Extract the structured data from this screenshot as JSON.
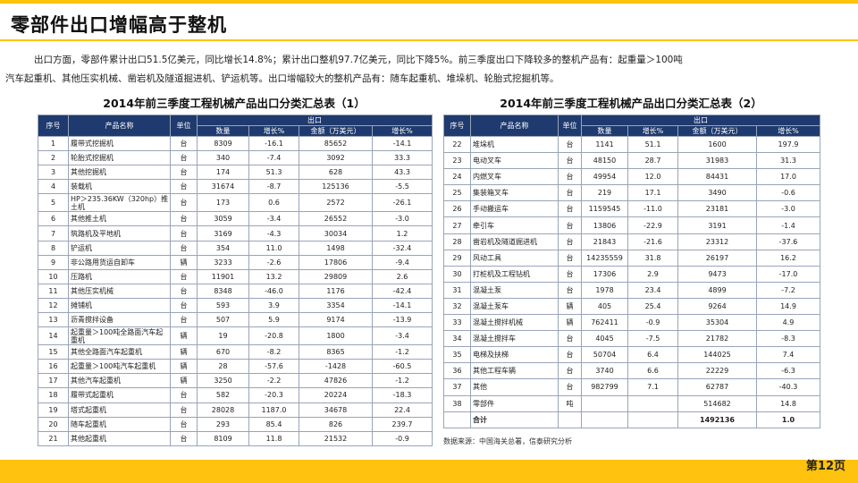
{
  "title": "零部件出口增幅高于整机",
  "paragraph": {
    "line1": "出口方面，零部件累计出口51.5亿美元，同比增长14.8%；累计出口整机97.7亿美元，同比下降5%。前三季度出口下降较多的整机产品有：起重量＞100吨",
    "line2": "汽车起重机、其他压实机械、凿岩机及隧道掘进机、铲运机等。出口增幅较大的整机产品有：随车起重机、堆垛机、轮胎式挖掘机等。"
  },
  "table1": {
    "title": "2014年前三季度工程机械产品出口分类汇总表（1）",
    "headers": {
      "seq": "序号",
      "name": "产品名称",
      "unit": "单位",
      "export": "出口",
      "qty": "数量",
      "growth1": "增长%",
      "amount": "金额（万美元）",
      "growth2": "增长%"
    },
    "rows": [
      [
        "1",
        "履带式挖掘机",
        "台",
        "8309",
        "-16.1",
        "85652",
        "-14.1"
      ],
      [
        "2",
        "轮胎式挖掘机",
        "台",
        "340",
        "-7.4",
        "3092",
        "33.3"
      ],
      [
        "3",
        "其他挖掘机",
        "台",
        "174",
        "51.3",
        "628",
        "43.3"
      ],
      [
        "4",
        "装载机",
        "台",
        "31674",
        "-8.7",
        "125136",
        "-5.5"
      ],
      [
        "5",
        "HP＞235.36KW（320hp）推土机",
        "台",
        "173",
        "0.6",
        "2572",
        "-26.1"
      ],
      [
        "6",
        "其他推土机",
        "台",
        "3059",
        "-3.4",
        "26552",
        "-3.0"
      ],
      [
        "7",
        "筑路机及平地机",
        "台",
        "3169",
        "-4.3",
        "30034",
        "1.2"
      ],
      [
        "8",
        "铲运机",
        "台",
        "354",
        "11.0",
        "1498",
        "-32.4"
      ],
      [
        "9",
        "非公路用货运自卸车",
        "辆",
        "3233",
        "-2.6",
        "17806",
        "-9.4"
      ],
      [
        "10",
        "压路机",
        "台",
        "11901",
        "13.2",
        "29809",
        "2.6"
      ],
      [
        "11",
        "其他压实机械",
        "台",
        "8348",
        "-46.0",
        "1176",
        "-42.4"
      ],
      [
        "12",
        "摊铺机",
        "台",
        "593",
        "3.9",
        "3354",
        "-14.1"
      ],
      [
        "13",
        "沥青搅拌设备",
        "台",
        "507",
        "5.9",
        "9174",
        "-13.9"
      ],
      [
        "14",
        "起重量＞100吨全路面汽车起重机",
        "辆",
        "19",
        "-20.8",
        "1800",
        "-3.4"
      ],
      [
        "15",
        "其他全路面汽车起重机",
        "辆",
        "670",
        "-8.2",
        "8365",
        "-1.2"
      ],
      [
        "16",
        "起重量＞100吨汽车起重机",
        "辆",
        "28",
        "-57.6",
        "-1428",
        "-60.5"
      ],
      [
        "17",
        "其他汽车起重机",
        "辆",
        "3250",
        "-2.2",
        "47826",
        "-1.2"
      ],
      [
        "18",
        "履带式起重机",
        "台",
        "582",
        "-20.3",
        "20224",
        "-18.3"
      ],
      [
        "19",
        "塔式起重机",
        "台",
        "28028",
        "1187.0",
        "34678",
        "22.4"
      ],
      [
        "20",
        "随车起重机",
        "台",
        "293",
        "85.4",
        "826",
        "239.7"
      ],
      [
        "21",
        "其他起重机",
        "台",
        "8109",
        "11.8",
        "21532",
        "-0.9"
      ]
    ]
  },
  "table2": {
    "title": "2014年前三季度工程机械产品出口分类汇总表（2）",
    "headers": {
      "seq": "序号",
      "name": "产品名称",
      "unit": "单位",
      "export": "出口",
      "qty": "数量",
      "growth1": "增长%",
      "amount": "金额（万美元）",
      "growth2": "增长%"
    },
    "rows": [
      [
        "22",
        "堆垛机",
        "台",
        "1141",
        "51.1",
        "1600",
        "197.9"
      ],
      [
        "23",
        "电动叉车",
        "台",
        "48150",
        "28.7",
        "31983",
        "31.3"
      ],
      [
        "24",
        "内燃叉车",
        "台",
        "49954",
        "12.0",
        "84431",
        "17.0"
      ],
      [
        "25",
        "集装箱叉车",
        "台",
        "219",
        "17.1",
        "3490",
        "-0.6"
      ],
      [
        "26",
        "手动搬运车",
        "台",
        "1159545",
        "-11.0",
        "23181",
        "-3.0"
      ],
      [
        "27",
        "牵引车",
        "台",
        "13806",
        "-22.9",
        "3191",
        "-1.4"
      ],
      [
        "28",
        "凿岩机及隧道掘进机",
        "台",
        "21843",
        "-21.6",
        "23312",
        "-37.6"
      ],
      [
        "29",
        "风动工具",
        "台",
        "14235559",
        "31.8",
        "26197",
        "16.2"
      ],
      [
        "30",
        "打桩机及工程钻机",
        "台",
        "17306",
        "2.9",
        "9473",
        "-17.0"
      ],
      [
        "31",
        "混凝土泵",
        "台",
        "1978",
        "23.4",
        "4899",
        "-7.2"
      ],
      [
        "32",
        "混凝土泵车",
        "辆",
        "405",
        "25.4",
        "9264",
        "14.9"
      ],
      [
        "33",
        "混凝土搅拌机械",
        "辆",
        "762411",
        "-0.9",
        "35304",
        "4.9"
      ],
      [
        "34",
        "混凝土搅拌车",
        "台",
        "4045",
        "-7.5",
        "21782",
        "-8.3"
      ],
      [
        "35",
        "电梯及扶梯",
        "台",
        "50704",
        "6.4",
        "144025",
        "7.4"
      ],
      [
        "36",
        "其他工程车辆",
        "台",
        "3740",
        "6.6",
        "22229",
        "-6.3"
      ],
      [
        "37",
        "其他",
        "台",
        "982799",
        "7.1",
        "62787",
        "-40.3"
      ],
      [
        "38",
        "零部件",
        "吨",
        "",
        "",
        "514682",
        "14.8"
      ],
      [
        "",
        "合计",
        "",
        "",
        "",
        "1492136",
        "1.0"
      ]
    ]
  },
  "source": "数据来源：中国海关总署，信泰研究分析",
  "page_number": "第12页",
  "colors": {
    "accent": "#ffc20e",
    "header": "#1f3a6e"
  }
}
